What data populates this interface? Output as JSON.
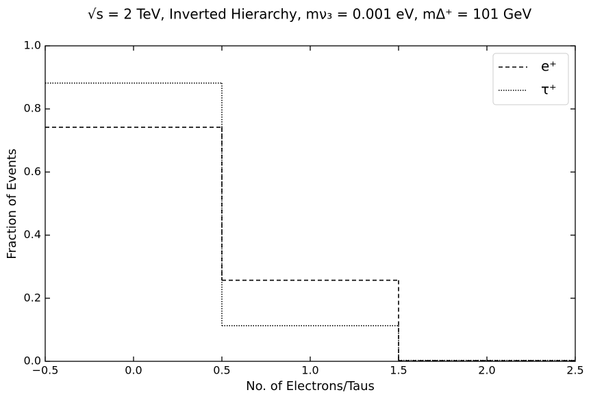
{
  "chart_data": {
    "type": "histogram",
    "title": "√s = 2 TeV, Inverted Hierarchy, mν₃ = 0.001 eV, mΔ⁺ = 101 GeV",
    "xlabel": "No. of Electrons/Taus",
    "ylabel": "Fraction of Events",
    "bins": [
      -0.5,
      0.5,
      1.5,
      2.5
    ],
    "series": [
      {
        "name": "e⁺",
        "color": "#000000",
        "linestyle": "dashed",
        "values": [
          0.742,
          0.257,
          0.002
        ]
      },
      {
        "name": "τ⁺",
        "color": "#000000",
        "linestyle": "dotted",
        "values": [
          0.882,
          0.113,
          0.003
        ]
      }
    ],
    "xlim": [
      -0.5,
      2.5
    ],
    "ylim": [
      0,
      1.0
    ],
    "xticks": [
      {
        "value": -0.5,
        "label": "−0.5"
      },
      {
        "value": 0,
        "label": "0.0"
      },
      0.5,
      {
        "value": 1,
        "label": "1.0"
      },
      1.5,
      {
        "value": 2,
        "label": "2.0"
      },
      2.5
    ],
    "yticks": [
      {
        "value": 0,
        "label": "0.0"
      },
      0.2,
      0.4,
      0.6,
      0.8,
      {
        "value": 1,
        "label": "1.0"
      }
    ],
    "legend": "upper right",
    "grid": false
  }
}
